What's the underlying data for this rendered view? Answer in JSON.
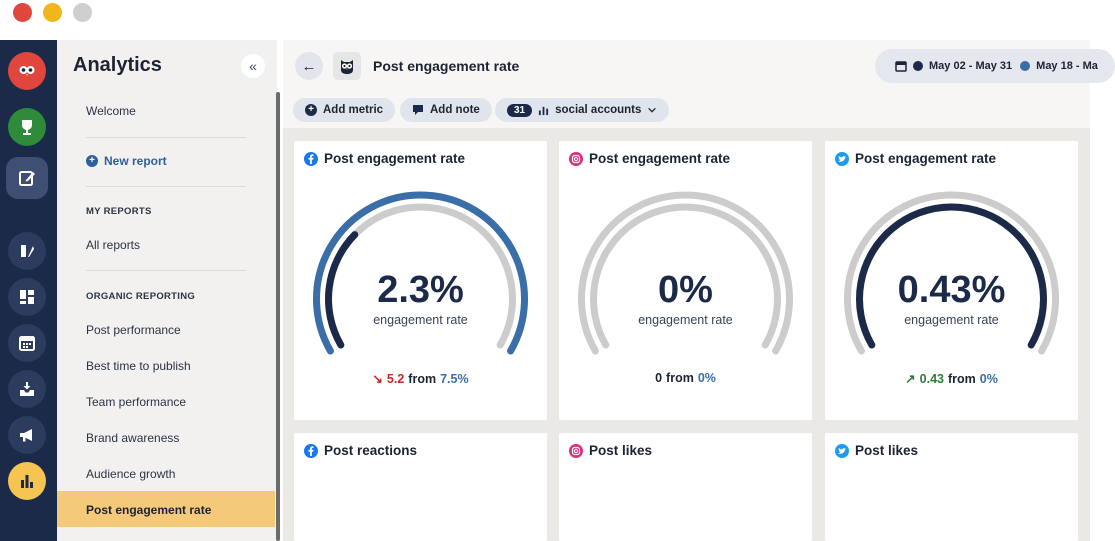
{
  "app": {
    "sidebar_title": "Analytics",
    "collapse_glyph": "«"
  },
  "sidebar": {
    "welcome": "Welcome",
    "new_report": "New report",
    "my_reports_heading": "MY REPORTS",
    "all_reports": "All reports",
    "organic_heading": "ORGANIC REPORTING",
    "items": [
      "Post performance",
      "Best time to publish",
      "Team performance",
      "Brand awareness",
      "Audience growth",
      "Post engagement rate"
    ],
    "active_item": "Post engagement rate"
  },
  "header": {
    "back_glyph": "←",
    "title": "Post engagement rate",
    "date_range_1": "May 02 - May 31",
    "date_range_2": "May 18 - Ma"
  },
  "toolbar": {
    "add_metric": "Add metric",
    "add_note": "Add note",
    "accounts_count": "31",
    "accounts_label": "social accounts"
  },
  "cards": [
    {
      "network": "facebook",
      "title": "Post engagement rate",
      "value": "2.3%",
      "label": "engagement rate",
      "change_direction": "down",
      "change_arrow": "↘",
      "change_value": "5.2",
      "from_word": "from",
      "from_value": "7.5%",
      "current_fraction": 0.31,
      "previous_fraction": 1.0
    },
    {
      "network": "instagram",
      "title": "Post engagement rate",
      "value": "0%",
      "label": "engagement rate",
      "change_direction": "none",
      "change_arrow": "",
      "change_value": "0",
      "from_word": "from",
      "from_value": "0%",
      "current_fraction": 0,
      "previous_fraction": 0
    },
    {
      "network": "twitter",
      "title": "Post engagement rate",
      "value": "0.43%",
      "label": "engagement rate",
      "change_direction": "up",
      "change_arrow": "↗",
      "change_value": "0.43",
      "from_word": "from",
      "from_value": "0%",
      "current_fraction": 1.0,
      "previous_fraction": 0
    }
  ],
  "bottom_cards": [
    {
      "network": "facebook",
      "title": "Post reactions"
    },
    {
      "network": "instagram",
      "title": "Post likes"
    },
    {
      "network": "twitter",
      "title": "Post likes"
    }
  ],
  "colors": {
    "rail_bg": "#1c2a4a",
    "accent_yellow": "#f5c451",
    "navy": "#1c2a4a",
    "steel_blue": "#3a6ea8",
    "track_gray": "#cccccc",
    "up_green": "#2e7d32",
    "down_red": "#c62828"
  }
}
